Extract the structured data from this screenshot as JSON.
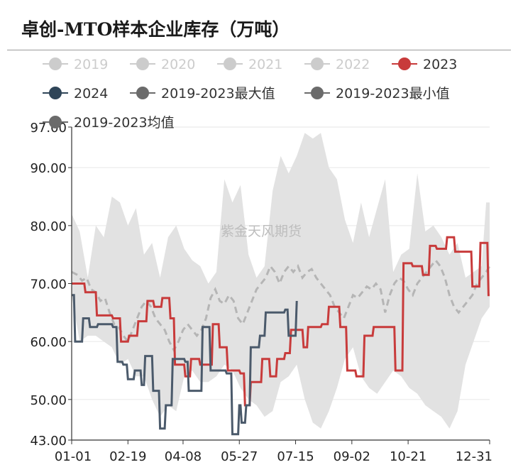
{
  "title": "卓创-MTO样本企业库存（万吨）",
  "watermark": "紫金天风期货",
  "colors": {
    "band": "#e2e2e2",
    "mean": "#b5b5b5",
    "s2023": "#c83b3b",
    "s2024": "#4b5a6b",
    "legend_inactive": "#cccccc",
    "legend_active_text": "#333333",
    "legend_gray_marker": "#6b6b6b",
    "grid": "#e6e6e6",
    "axis": "#333333"
  },
  "chart_data": {
    "type": "line",
    "title": "卓创-MTO样本企业库存（万吨）",
    "ylim": [
      43,
      97
    ],
    "yticks": [
      "97.00",
      "90.00",
      "80.00",
      "70.00",
      "60.00",
      "50.00",
      "43.00"
    ],
    "ytick_values": [
      97,
      90,
      80,
      70,
      60,
      50,
      43
    ],
    "x_range": [
      1,
      365
    ],
    "xticks": [
      {
        "label": "01-01",
        "day": 1
      },
      {
        "label": "02-19",
        "day": 50
      },
      {
        "label": "04-08",
        "day": 98
      },
      {
        "label": "05-27",
        "day": 147
      },
      {
        "label": "07-15",
        "day": 196
      },
      {
        "label": "09-02",
        "day": 245
      },
      {
        "label": "10-21",
        "day": 294
      },
      {
        "label": "12-31",
        "day": 365
      }
    ],
    "legend": [
      {
        "name": "2019",
        "active": false
      },
      {
        "name": "2020",
        "active": false
      },
      {
        "name": "2021",
        "active": false
      },
      {
        "name": "2022",
        "active": false
      },
      {
        "name": "2023",
        "active": true,
        "color": "#c83b3b"
      },
      {
        "name": "2024",
        "active": true,
        "color": "#2f4558"
      },
      {
        "name": "2019-2023最大值",
        "active": true,
        "color": "#6b6b6b"
      },
      {
        "name": "2019-2023最小值",
        "active": true,
        "color": "#6b6b6b"
      },
      {
        "name": "2019-2023均值",
        "active": true,
        "color": "#6b6b6b"
      }
    ],
    "band_max": [
      [
        1,
        82
      ],
      [
        8,
        79
      ],
      [
        15,
        71
      ],
      [
        22,
        80
      ],
      [
        29,
        78
      ],
      [
        36,
        85
      ],
      [
        43,
        84
      ],
      [
        50,
        80
      ],
      [
        57,
        83
      ],
      [
        64,
        75
      ],
      [
        71,
        77
      ],
      [
        78,
        71
      ],
      [
        85,
        78
      ],
      [
        92,
        80
      ],
      [
        99,
        76
      ],
      [
        106,
        74
      ],
      [
        113,
        73
      ],
      [
        120,
        70
      ],
      [
        127,
        72
      ],
      [
        134,
        88
      ],
      [
        141,
        84
      ],
      [
        148,
        87
      ],
      [
        155,
        75
      ],
      [
        162,
        71
      ],
      [
        169,
        73
      ],
      [
        176,
        86
      ],
      [
        183,
        92
      ],
      [
        190,
        89
      ],
      [
        197,
        92
      ],
      [
        204,
        96
      ],
      [
        211,
        95
      ],
      [
        218,
        96
      ],
      [
        225,
        90
      ],
      [
        232,
        88
      ],
      [
        239,
        81
      ],
      [
        246,
        77
      ],
      [
        253,
        84
      ],
      [
        260,
        78
      ],
      [
        267,
        83
      ],
      [
        274,
        88
      ],
      [
        281,
        72
      ],
      [
        288,
        75
      ],
      [
        295,
        76
      ],
      [
        302,
        89
      ],
      [
        309,
        79
      ],
      [
        316,
        80
      ],
      [
        323,
        78
      ],
      [
        330,
        75
      ],
      [
        337,
        77
      ],
      [
        344,
        71
      ],
      [
        351,
        72
      ],
      [
        358,
        73
      ],
      [
        362,
        84
      ],
      [
        365,
        84
      ]
    ],
    "band_min": [
      [
        1,
        68
      ],
      [
        8,
        60
      ],
      [
        15,
        61
      ],
      [
        22,
        61
      ],
      [
        29,
        60
      ],
      [
        36,
        59
      ],
      [
        43,
        56
      ],
      [
        50,
        57
      ],
      [
        57,
        54
      ],
      [
        64,
        54
      ],
      [
        71,
        50
      ],
      [
        78,
        47
      ],
      [
        85,
        49
      ],
      [
        92,
        48
      ],
      [
        99,
        54
      ],
      [
        106,
        55
      ],
      [
        113,
        53
      ],
      [
        120,
        53
      ],
      [
        127,
        54
      ],
      [
        134,
        56
      ],
      [
        141,
        55
      ],
      [
        148,
        52
      ],
      [
        155,
        50
      ],
      [
        162,
        49
      ],
      [
        169,
        47
      ],
      [
        176,
        48
      ],
      [
        183,
        53
      ],
      [
        190,
        54
      ],
      [
        197,
        56
      ],
      [
        204,
        50
      ],
      [
        211,
        46
      ],
      [
        218,
        45
      ],
      [
        225,
        48
      ],
      [
        232,
        52
      ],
      [
        239,
        57
      ],
      [
        246,
        59
      ],
      [
        253,
        54
      ],
      [
        260,
        52
      ],
      [
        267,
        51
      ],
      [
        274,
        53
      ],
      [
        281,
        55
      ],
      [
        288,
        54
      ],
      [
        295,
        52
      ],
      [
        302,
        51
      ],
      [
        309,
        49
      ],
      [
        316,
        48
      ],
      [
        323,
        47
      ],
      [
        330,
        45
      ],
      [
        337,
        48
      ],
      [
        344,
        56
      ],
      [
        351,
        60
      ],
      [
        358,
        64
      ],
      [
        365,
        66
      ]
    ],
    "series": [
      {
        "name": "2023",
        "values": [
          [
            1,
            70
          ],
          [
            12,
            70
          ],
          [
            13,
            68.5
          ],
          [
            22,
            68.5
          ],
          [
            23,
            64.5
          ],
          [
            36,
            64.5
          ],
          [
            37,
            64
          ],
          [
            43,
            64
          ],
          [
            44,
            60
          ],
          [
            50,
            60
          ],
          [
            51,
            61
          ],
          [
            58,
            61
          ],
          [
            59,
            63.5
          ],
          [
            66,
            63.5
          ],
          [
            67,
            67
          ],
          [
            72,
            67
          ],
          [
            73,
            66
          ],
          [
            79,
            66
          ],
          [
            80,
            67.5
          ],
          [
            86,
            67.5
          ],
          [
            87,
            64
          ],
          [
            90,
            64
          ],
          [
            91,
            56
          ],
          [
            99,
            56
          ],
          [
            100,
            54
          ],
          [
            104,
            54
          ],
          [
            105,
            57
          ],
          [
            112,
            57
          ],
          [
            113,
            56
          ],
          [
            123,
            56
          ],
          [
            124,
            63
          ],
          [
            129,
            63
          ],
          [
            130,
            59
          ],
          [
            136,
            59
          ],
          [
            137,
            55
          ],
          [
            147,
            55
          ],
          [
            148,
            54.5
          ],
          [
            151,
            54.5
          ],
          [
            152,
            49
          ],
          [
            156,
            49
          ],
          [
            157,
            53
          ],
          [
            166,
            53
          ],
          [
            167,
            57
          ],
          [
            173,
            57
          ],
          [
            174,
            54
          ],
          [
            179,
            54
          ],
          [
            180,
            57
          ],
          [
            186,
            57
          ],
          [
            187,
            58
          ],
          [
            191,
            58
          ],
          [
            192,
            62
          ],
          [
            202,
            62
          ],
          [
            203,
            59
          ],
          [
            206,
            59
          ],
          [
            207,
            62.5
          ],
          [
            218,
            62.5
          ],
          [
            219,
            63
          ],
          [
            224,
            63
          ],
          [
            225,
            66
          ],
          [
            234,
            66
          ],
          [
            235,
            62.5
          ],
          [
            240,
            62.5
          ],
          [
            241,
            55
          ],
          [
            248,
            55
          ],
          [
            249,
            54
          ],
          [
            255,
            54
          ],
          [
            256,
            61
          ],
          [
            263,
            61
          ],
          [
            264,
            62.5
          ],
          [
            282,
            62.5
          ],
          [
            283,
            55
          ],
          [
            289,
            55
          ],
          [
            290,
            73.5
          ],
          [
            297,
            73.5
          ],
          [
            298,
            73
          ],
          [
            306,
            73
          ],
          [
            307,
            71.5
          ],
          [
            312,
            71.5
          ],
          [
            313,
            76.5
          ],
          [
            318,
            76.5
          ],
          [
            319,
            76
          ],
          [
            327,
            76
          ],
          [
            328,
            78
          ],
          [
            334,
            78
          ],
          [
            335,
            75.5
          ],
          [
            349,
            75.5
          ],
          [
            350,
            69.5
          ],
          [
            356,
            69.5
          ],
          [
            357,
            77
          ],
          [
            363,
            77
          ],
          [
            364,
            68
          ],
          [
            365,
            68
          ]
        ]
      },
      {
        "name": "2024",
        "values": [
          [
            1,
            68
          ],
          [
            3,
            68
          ],
          [
            4,
            60
          ],
          [
            10,
            60
          ],
          [
            11,
            64
          ],
          [
            16,
            64
          ],
          [
            17,
            62.5
          ],
          [
            23,
            62.5
          ],
          [
            24,
            63
          ],
          [
            36,
            63
          ],
          [
            37,
            62.5
          ],
          [
            40,
            62.5
          ],
          [
            41,
            56.5
          ],
          [
            45,
            56.5
          ],
          [
            46,
            56
          ],
          [
            49,
            56
          ],
          [
            50,
            53.5
          ],
          [
            55,
            53.5
          ],
          [
            56,
            55
          ],
          [
            61,
            55
          ],
          [
            62,
            52.5
          ],
          [
            64,
            52.5
          ],
          [
            65,
            57.5
          ],
          [
            71,
            57.5
          ],
          [
            72,
            51.5
          ],
          [
            77,
            51.5
          ],
          [
            78,
            45
          ],
          [
            82,
            45
          ],
          [
            83,
            49
          ],
          [
            88,
            49
          ],
          [
            89,
            57
          ],
          [
            99,
            57
          ],
          [
            100,
            56.5
          ],
          [
            102,
            56.5
          ],
          [
            103,
            51.5
          ],
          [
            114,
            51.5
          ],
          [
            115,
            62.5
          ],
          [
            121,
            62.5
          ],
          [
            122,
            55
          ],
          [
            135,
            55
          ],
          [
            136,
            54.5
          ],
          [
            140,
            54.5
          ],
          [
            141,
            44
          ],
          [
            146,
            44
          ],
          [
            147,
            49
          ],
          [
            148,
            49
          ],
          [
            149,
            46
          ],
          [
            152,
            46
          ],
          [
            153,
            49
          ],
          [
            156,
            49
          ],
          [
            157,
            59
          ],
          [
            164,
            59
          ],
          [
            165,
            61
          ],
          [
            169,
            61
          ],
          [
            170,
            65
          ],
          [
            186,
            65
          ],
          [
            187,
            65.5
          ],
          [
            189,
            65.5
          ],
          [
            190,
            61
          ],
          [
            196,
            61
          ],
          [
            197,
            67
          ]
        ]
      }
    ],
    "mean": [
      [
        1,
        72
      ],
      [
        6,
        71.5
      ],
      [
        10,
        70.5
      ],
      [
        14,
        71
      ],
      [
        18,
        69
      ],
      [
        22,
        68.5
      ],
      [
        26,
        67
      ],
      [
        30,
        67.5
      ],
      [
        34,
        65
      ],
      [
        38,
        63
      ],
      [
        42,
        62.5
      ],
      [
        46,
        61
      ],
      [
        50,
        60
      ],
      [
        54,
        62
      ],
      [
        58,
        64
      ],
      [
        62,
        66
      ],
      [
        66,
        67
      ],
      [
        70,
        66
      ],
      [
        74,
        64
      ],
      [
        78,
        63
      ],
      [
        82,
        62
      ],
      [
        86,
        60
      ],
      [
        90,
        58.5
      ],
      [
        94,
        60
      ],
      [
        98,
        62
      ],
      [
        102,
        63
      ],
      [
        106,
        62
      ],
      [
        110,
        61
      ],
      [
        114,
        62
      ],
      [
        118,
        64
      ],
      [
        122,
        67.5
      ],
      [
        126,
        69
      ],
      [
        130,
        67
      ],
      [
        134,
        66.5
      ],
      [
        138,
        68
      ],
      [
        142,
        67
      ],
      [
        146,
        64
      ],
      [
        150,
        63
      ],
      [
        154,
        65
      ],
      [
        158,
        67
      ],
      [
        162,
        69
      ],
      [
        166,
        70
      ],
      [
        170,
        71
      ],
      [
        174,
        73
      ],
      [
        178,
        72
      ],
      [
        182,
        70
      ],
      [
        186,
        72
      ],
      [
        190,
        73
      ],
      [
        194,
        72
      ],
      [
        198,
        73
      ],
      [
        202,
        71
      ],
      [
        206,
        72
      ],
      [
        210,
        72.5
      ],
      [
        214,
        71
      ],
      [
        218,
        70
      ],
      [
        222,
        69
      ],
      [
        226,
        68
      ],
      [
        230,
        66
      ],
      [
        234,
        65
      ],
      [
        238,
        64
      ],
      [
        242,
        66
      ],
      [
        246,
        68
      ],
      [
        250,
        67.5
      ],
      [
        254,
        68.5
      ],
      [
        258,
        69.5
      ],
      [
        262,
        69
      ],
      [
        266,
        70
      ],
      [
        270,
        69
      ],
      [
        274,
        65
      ],
      [
        278,
        68
      ],
      [
        282,
        70
      ],
      [
        286,
        71
      ],
      [
        290,
        70.5
      ],
      [
        294,
        69
      ],
      [
        298,
        68
      ],
      [
        302,
        70
      ],
      [
        306,
        71
      ],
      [
        310,
        72
      ],
      [
        314,
        73
      ],
      [
        318,
        74
      ],
      [
        322,
        73
      ],
      [
        326,
        71
      ],
      [
        330,
        68
      ],
      [
        334,
        66
      ],
      [
        338,
        65
      ],
      [
        342,
        66
      ],
      [
        346,
        67
      ],
      [
        350,
        68
      ],
      [
        354,
        70
      ],
      [
        358,
        71
      ],
      [
        362,
        72
      ],
      [
        365,
        73
      ]
    ]
  }
}
